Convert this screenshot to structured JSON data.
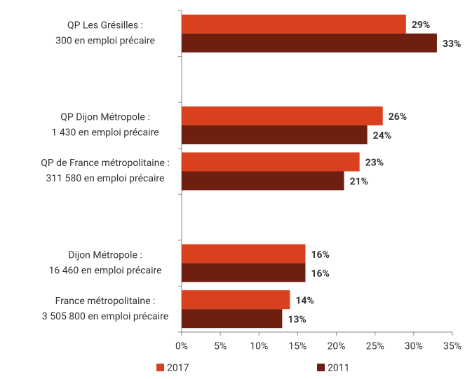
{
  "chart_data": {
    "type": "hbar",
    "categories": [
      [
        "QP Les Grésilles :",
        "300 en emploi précaire"
      ],
      null,
      [
        "QP Dijon Métropole :",
        "1 430 en emploi précaire"
      ],
      [
        "QP de France métropolitaine :",
        "311 580 en emploi précaire"
      ],
      null,
      [
        "Dijon Métropole :",
        "16 460 en emploi précaire"
      ],
      [
        "France métropolitaine :",
        "3 505 800 en emploi précaire"
      ]
    ],
    "series": [
      {
        "name": "2017",
        "color": "#d9401e",
        "values": [
          29,
          null,
          26,
          23,
          null,
          16,
          14
        ],
        "value_labels": [
          "29%",
          null,
          "26%",
          "23%",
          null,
          "16%",
          "14%"
        ]
      },
      {
        "name": "2011",
        "color": "#6e1f10",
        "values": [
          33,
          null,
          24,
          21,
          null,
          16,
          13
        ],
        "value_labels": [
          "33%",
          null,
          "24%",
          "21%",
          null,
          "16%",
          "13%"
        ]
      }
    ],
    "xlim": [
      0,
      35
    ],
    "xticks": [
      {
        "value": 0,
        "label": "0%"
      },
      {
        "value": 5,
        "label": "5%"
      },
      {
        "value": 10,
        "label": "10%"
      },
      {
        "value": 15,
        "label": "15%"
      },
      {
        "value": 20,
        "label": "20%"
      },
      {
        "value": 25,
        "label": "25%"
      },
      {
        "value": 30,
        "label": "30%"
      },
      {
        "value": 35,
        "label": "35%"
      }
    ],
    "legend": "bottom"
  }
}
